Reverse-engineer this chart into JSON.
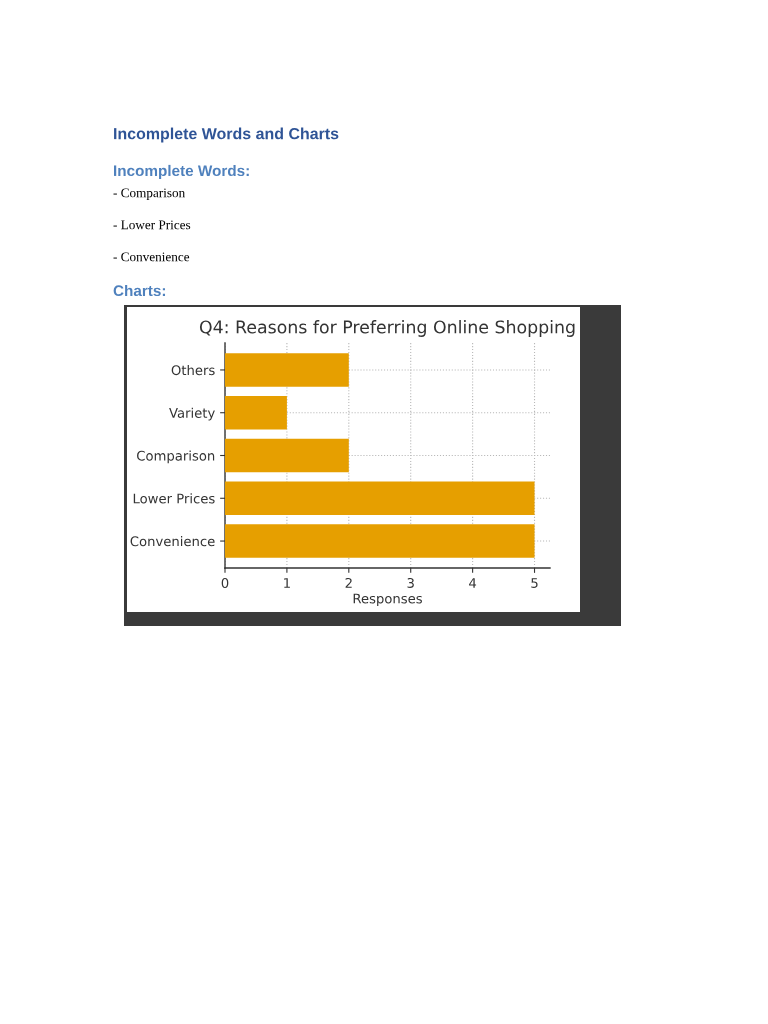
{
  "chart_data": {
    "type": "bar",
    "orientation": "horizontal",
    "title": "Q4: Reasons for Preferring Online Shopping",
    "xlabel": "Responses",
    "categories": [
      "Others",
      "Variety",
      "Comparison",
      "Lower Prices",
      "Convenience"
    ],
    "values": [
      2,
      1,
      2,
      5,
      5
    ],
    "color": "#e69f00",
    "xlim": [
      0,
      5.25
    ],
    "xticks": [
      0,
      1,
      2,
      3,
      4,
      5
    ],
    "grid": true,
    "annotations": [
      "Incomplete Words and Charts",
      "Incomplete Words:",
      "- Comparison",
      "- Lower Prices",
      "- Convenience",
      "Charts:"
    ]
  }
}
